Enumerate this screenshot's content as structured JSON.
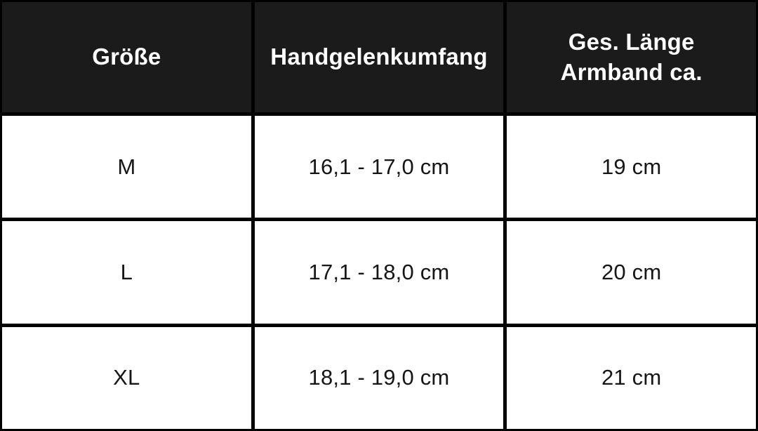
{
  "table": {
    "headers": [
      "Größe",
      "Handgelenkumfang",
      "Ges. Länge\nArmband ca."
    ],
    "rows": [
      [
        "M",
        "16,1 - 17,0 cm",
        "19 cm"
      ],
      [
        "L",
        "17,1 - 18,0 cm",
        "20 cm"
      ],
      [
        "XL",
        "18,1 - 19,0 cm",
        "21 cm"
      ]
    ]
  },
  "chart_data": {
    "type": "table",
    "title": "",
    "columns": [
      "Größe",
      "Handgelenkumfang",
      "Ges. Länge Armband ca."
    ],
    "rows": [
      {
        "groesse": "M",
        "handgelenkumfang": "16,1 - 17,0 cm",
        "ges_laenge_armband_ca": "19 cm"
      },
      {
        "groesse": "L",
        "handgelenkumfang": "17,1 - 18,0 cm",
        "ges_laenge_armband_ca": "20 cm"
      },
      {
        "groesse": "XL",
        "handgelenkumfang": "18,1 - 19,0 cm",
        "ges_laenge_armband_ca": "21 cm"
      }
    ],
    "layout": {
      "grid": true,
      "header_position": "top",
      "alignment": "center"
    }
  },
  "colors": {
    "header_bg": "#1b1b1b",
    "header_text": "#ffffff",
    "border": "#000000",
    "body_bg": "#ffffff",
    "body_text": "#161616"
  }
}
